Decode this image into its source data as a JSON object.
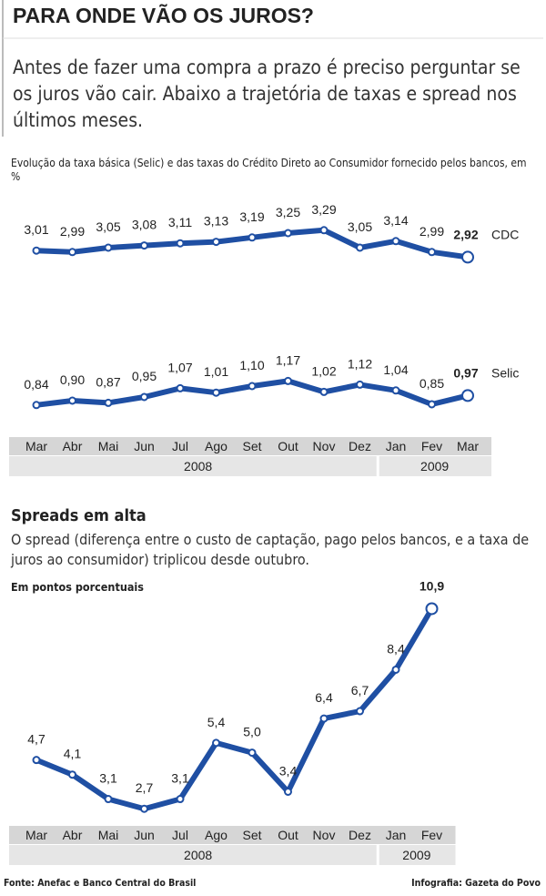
{
  "title": "PARA ONDE VÃO OS JUROS?",
  "intro": "Antes de fazer uma compra a prazo é preciso perguntar se os juros vão cair. Abaixo a trajetória de taxas e spread nos últimos meses.",
  "source": "Fonte: Anefac e Banco Central do Brasil",
  "credit": "Infografia: Gazeta do Povo",
  "chart_data": [
    {
      "type": "line",
      "subtitle": "Evolução da taxa básica (Selic) e das taxas do Crédito Direto ao Consumidor fornecido pelos bancos, em %",
      "categories": [
        "Mar",
        "Abr",
        "Mai",
        "Jun",
        "Jul",
        "Ago",
        "Set",
        "Out",
        "Nov",
        "Dez",
        "Jan",
        "Fev",
        "Mar"
      ],
      "year_labels": [
        "2008",
        "2009"
      ],
      "ylim": [
        0.4,
        1.4
      ],
      "y2lim": [
        2.7,
        3.7
      ],
      "series": [
        {
          "name": "CDC",
          "color": "#1f4fa3",
          "axis": "y2",
          "values": [
            3.01,
            2.99,
            3.05,
            3.08,
            3.11,
            3.13,
            3.19,
            3.25,
            3.29,
            3.05,
            3.14,
            2.99,
            2.92
          ],
          "value_labels": [
            "3,01",
            "2,99",
            "3,05",
            "3,08",
            "3,11",
            "3,13",
            "3,19",
            "3,25",
            "3,29",
            "3,05",
            "3,14",
            "2,99",
            "2,92"
          ]
        },
        {
          "name": "Selic",
          "color": "#1f4fa3",
          "values": [
            0.84,
            0.9,
            0.87,
            0.95,
            1.07,
            1.01,
            1.1,
            1.17,
            1.02,
            1.12,
            1.04,
            0.85,
            0.97
          ],
          "value_labels": [
            "0,84",
            "0,90",
            "0,87",
            "0,95",
            "1,07",
            "1,01",
            "1,10",
            "1,17",
            "1,02",
            "1,12",
            "1,04",
            "0,85",
            "0,97"
          ]
        }
      ]
    },
    {
      "type": "line",
      "title": "Spreads em alta",
      "subtitle": "O spread (diferença entre o custo de captação, pago pelos bancos, e a taxa de juros ao consumidor) triplicou desde outubro.",
      "unit": "Em pontos porcentuais",
      "categories": [
        "Mar",
        "Abr",
        "Mai",
        "Jun",
        "Jul",
        "Ago",
        "Set",
        "Out",
        "Nov",
        "Dez",
        "Jan",
        "Fev"
      ],
      "year_labels": [
        "2008",
        "2009"
      ],
      "ylim": [
        2,
        12
      ],
      "series": [
        {
          "name": "Spread",
          "color": "#1f4fa3",
          "values": [
            4.7,
            4.1,
            3.1,
            2.7,
            3.1,
            5.4,
            5.0,
            3.4,
            6.4,
            6.7,
            8.4,
            10.9
          ],
          "value_labels": [
            "4,7",
            "4,1",
            "3,1",
            "2,7",
            "3,1",
            "5,4",
            "5,0",
            "3,4",
            "6,4",
            "6,7",
            "8,4",
            "10,9"
          ]
        }
      ]
    }
  ]
}
